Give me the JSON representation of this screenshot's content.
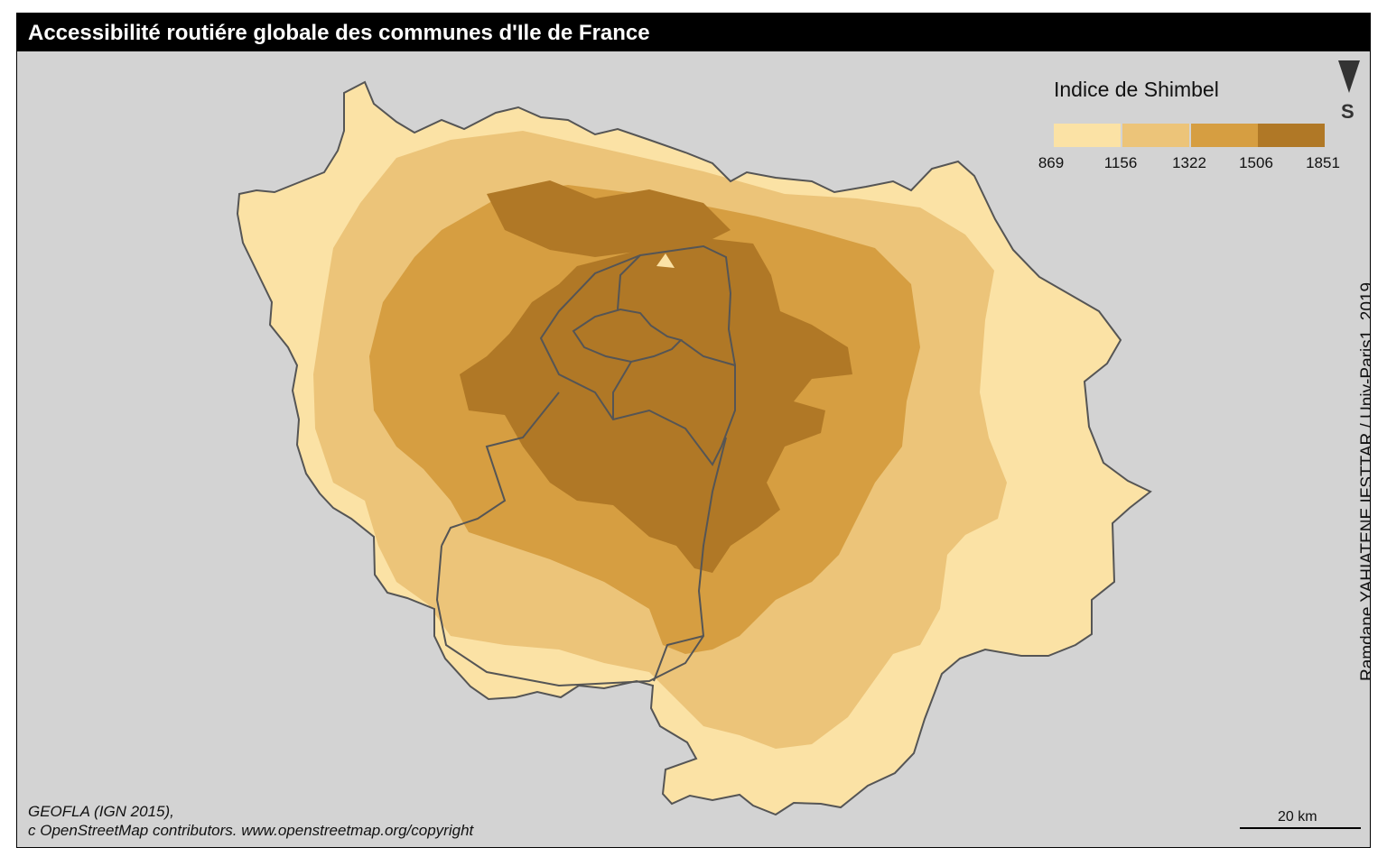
{
  "title": "Accessibilité routiére globale des communes d'Ile de France",
  "legend": {
    "title": "Indice de Shimbel",
    "breaks": [
      "869",
      "1156",
      "1322",
      "1506",
      "1851"
    ],
    "classes": [
      {
        "color": "#fbe2a5"
      },
      {
        "color": "#ecc479"
      },
      {
        "color": "#d69e41"
      },
      {
        "color": "#b07826"
      }
    ]
  },
  "north_arrow": {
    "letter": "S"
  },
  "credit": "Ramdane YAHIATENE,IFSTTAR / Univ-Paris1, 2019",
  "source": {
    "line1": "GEOFLA (IGN 2015),",
    "line2": "c OpenStreetMap contributors. www.openstreetmap.org/copyright"
  },
  "scale_bar": {
    "label": "20 km"
  },
  "colors": {
    "background": "#d3d3d3",
    "title_bar": "#000000",
    "boundary": "#555555"
  }
}
